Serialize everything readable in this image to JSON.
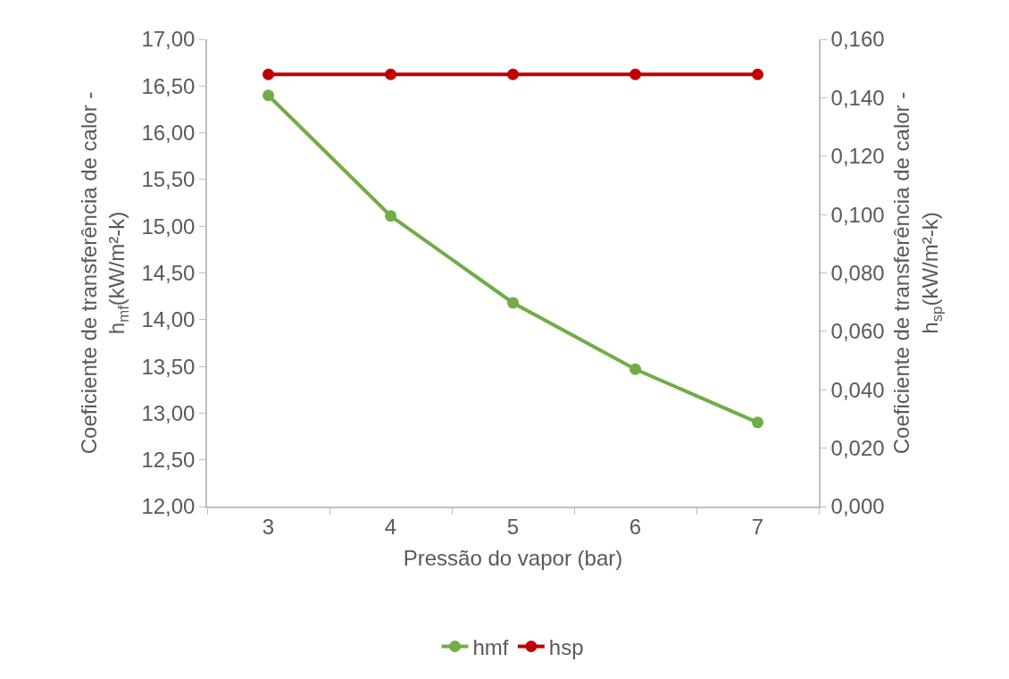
{
  "chart_data": {
    "type": "line",
    "xlabel": "Pressão do vapor (bar)",
    "ylabel": "Coeficiente de transferência de calor -\nh$_{mf}$(kW/m²-k)",
    "y2label": "Coeficiente de transferência de calor -\nh$_{sp}$(kW/m²-k)",
    "categories": [
      "3",
      "4",
      "5",
      "6",
      "7"
    ],
    "series": [
      {
        "name": "hmf",
        "color": "#70ad47",
        "values": [
          16.4,
          15.11,
          14.18,
          13.47,
          12.9
        ]
      },
      {
        "name": "hsp",
        "color": "#c00000",
        "values": [
          0.148,
          0.148,
          0.148,
          0.148,
          0.148
        ],
        "axis": "y2"
      }
    ],
    "ylim": [
      12,
      17
    ],
    "yticks": [
      {
        "value": 12,
        "label": "12,00"
      },
      {
        "value": 12.5,
        "label": "12,50"
      },
      {
        "value": 13,
        "label": "13,00"
      },
      {
        "value": 13.5,
        "label": "13,50"
      },
      {
        "value": 14,
        "label": "14,00"
      },
      {
        "value": 14.5,
        "label": "14,50"
      },
      {
        "value": 15,
        "label": "15,00"
      },
      {
        "value": 15.5,
        "label": "15,50"
      },
      {
        "value": 16,
        "label": "16,00"
      },
      {
        "value": 16.5,
        "label": "16,50"
      },
      {
        "value": 17,
        "label": "17,00"
      }
    ],
    "y2lim": [
      0,
      0.16
    ],
    "y2ticks": [
      {
        "value": 0,
        "label": "0,000"
      },
      {
        "value": 0.02,
        "label": "0,020"
      },
      {
        "value": 0.04,
        "label": "0,040"
      },
      {
        "value": 0.06,
        "label": "0,060"
      },
      {
        "value": 0.08,
        "label": "0,080"
      },
      {
        "value": 0.1,
        "label": "0,100"
      },
      {
        "value": 0.12,
        "label": "0,120"
      },
      {
        "value": 0.14,
        "label": "0,140"
      },
      {
        "value": 0.16,
        "label": "0,160"
      }
    ],
    "grid": false,
    "legend": "bottom",
    "marker": "circle",
    "line_style": "solid"
  }
}
